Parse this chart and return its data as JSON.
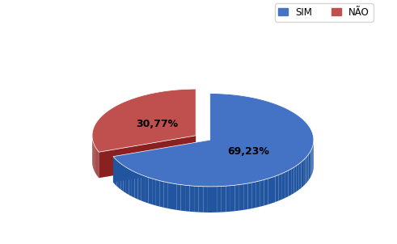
{
  "slices": [
    69.23,
    30.77
  ],
  "labels": [
    "SIM",
    "NÃO"
  ],
  "colors_top": [
    "#4472C4",
    "#C0504D"
  ],
  "colors_side": [
    "#2255A0",
    "#8B2020"
  ],
  "explode": [
    0.0,
    0.12
  ],
  "autopct_labels": [
    "69,23%",
    "30,77%"
  ],
  "legend_colors": [
    "#4472C4",
    "#C0504D"
  ],
  "background_color": "#ffffff",
  "startangle": 90,
  "tilt": 0.45,
  "thickness": 0.18
}
